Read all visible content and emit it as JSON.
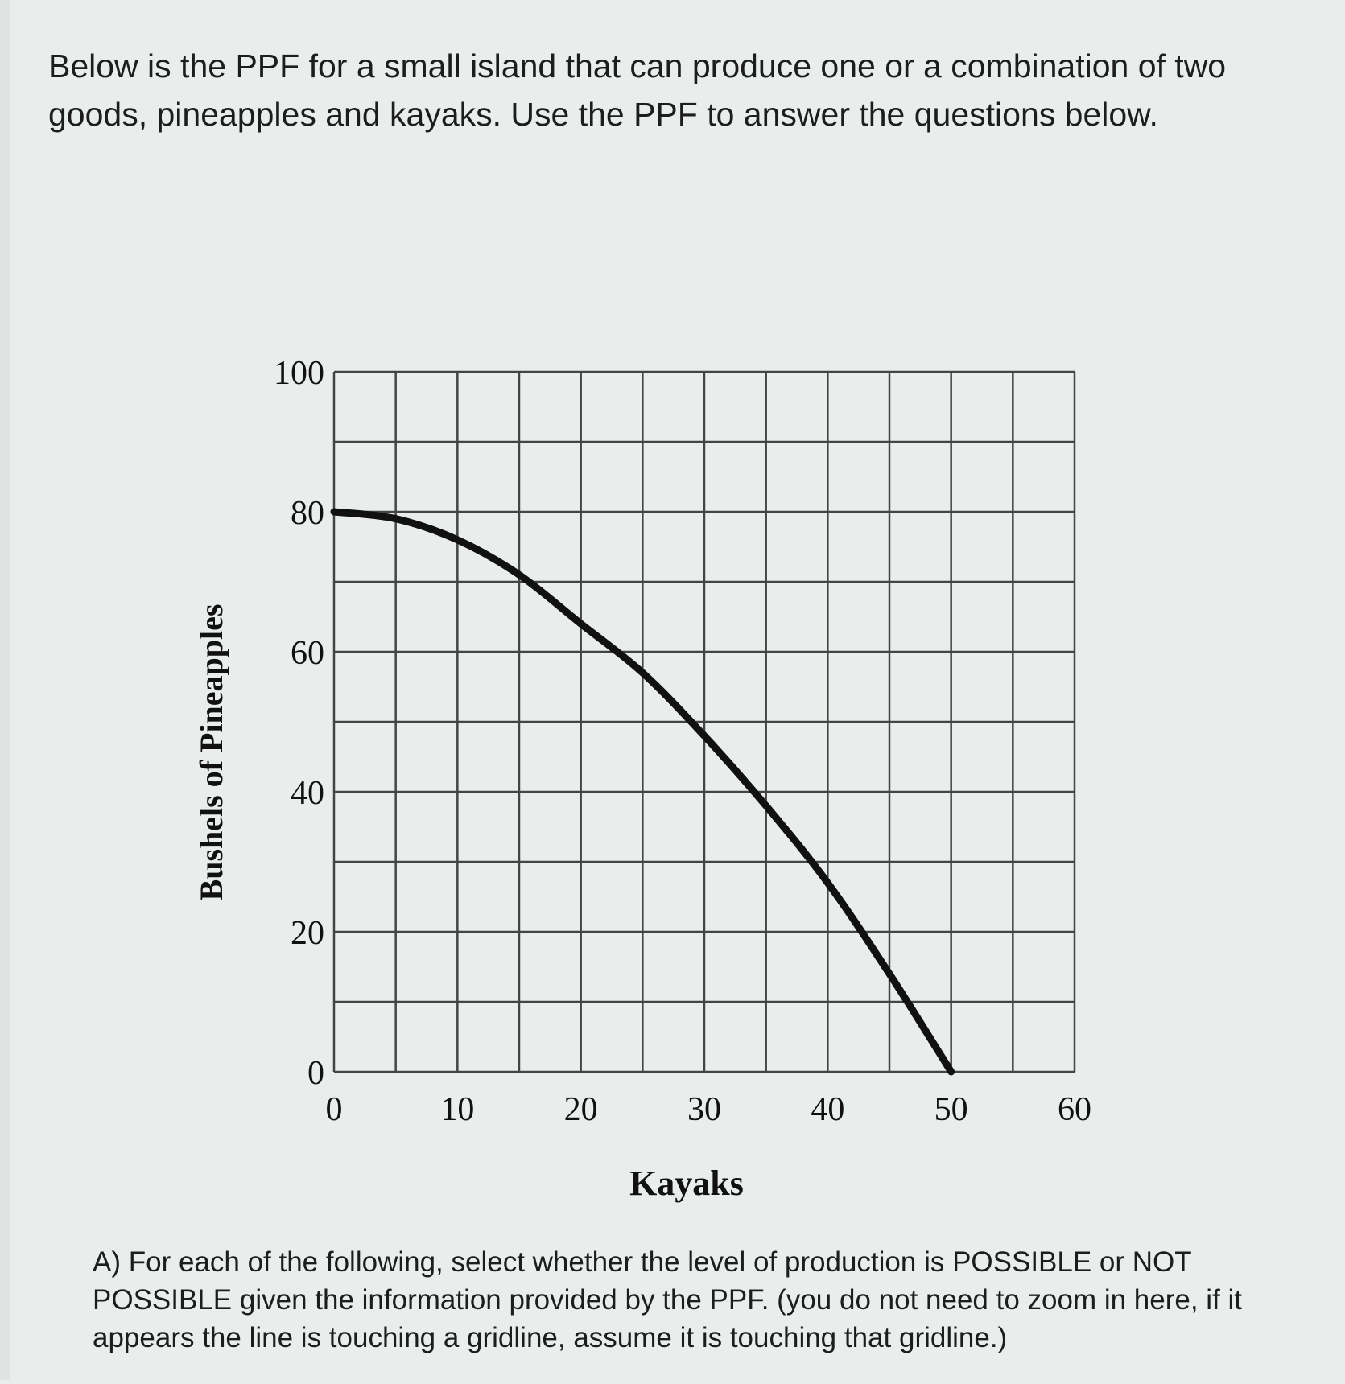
{
  "question": {
    "intro": "Below is the PPF for a small island that can produce one or a combination of two goods, pineapples and kayaks. Use the PPF to answer the questions below.",
    "part_a": "A) For each of the following, select whether the level of production is POSSIBLE or NOT POSSIBLE given the information provided by the PPF. (you do not need to zoom in here, if it appears the line is touching a gridline, assume it is touching that gridline.)"
  },
  "chart_data": {
    "type": "line",
    "title": "",
    "xlabel": "Kayaks",
    "ylabel": "Bushels of Pineapples",
    "xlim": [
      0,
      60
    ],
    "ylim": [
      0,
      100
    ],
    "x_ticks": [
      0,
      10,
      20,
      30,
      40,
      50,
      60
    ],
    "y_ticks": [
      0,
      20,
      40,
      60,
      80,
      100
    ],
    "x_grid_step": 5,
    "y_grid_step": 10,
    "grid": true,
    "legend": "none",
    "line_color": "#111111",
    "series": [
      {
        "x": [
          0,
          5,
          10,
          15,
          20,
          25,
          30,
          35,
          40,
          45,
          50
        ],
        "y": [
          80,
          79,
          76,
          71,
          64,
          57,
          48,
          38,
          27,
          14,
          0
        ]
      }
    ]
  }
}
